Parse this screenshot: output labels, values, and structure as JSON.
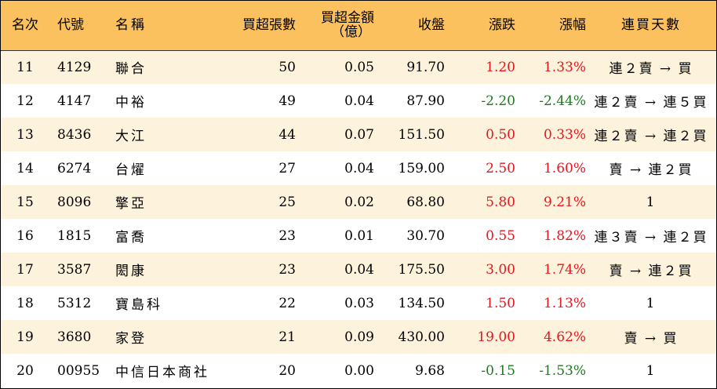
{
  "colors": {
    "header_bg": "#fbc15e",
    "stripe_bg": "#fdf2dc",
    "up": "#e8141e",
    "down": "#1e7a1e"
  },
  "headers": {
    "rank": "名次",
    "code": "代號",
    "name": "名稱",
    "net_volume": "買超張數",
    "net_amount_line1": "買超金額",
    "net_amount_line2": "（億）",
    "close": "收盤",
    "change": "漲跌",
    "change_pct": "漲幅",
    "streak": "連買天數"
  },
  "rows": [
    {
      "rank": "11",
      "code": "4129",
      "name": "聯合",
      "volume": "50",
      "amount": "0.05",
      "close": "91.70",
      "change": "1.20",
      "pct": "1.33%",
      "dir": "up",
      "streak": "連２賣 → 買"
    },
    {
      "rank": "12",
      "code": "4147",
      "name": "中裕",
      "volume": "49",
      "amount": "0.04",
      "close": "87.90",
      "change": "-2.20",
      "pct": "-2.44%",
      "dir": "down",
      "streak": "連２賣 → 連５買"
    },
    {
      "rank": "13",
      "code": "8436",
      "name": "大江",
      "volume": "44",
      "amount": "0.07",
      "close": "151.50",
      "change": "0.50",
      "pct": "0.33%",
      "dir": "up",
      "streak": "連２賣 → 連２買"
    },
    {
      "rank": "14",
      "code": "6274",
      "name": "台燿",
      "volume": "27",
      "amount": "0.04",
      "close": "159.00",
      "change": "2.50",
      "pct": "1.60%",
      "dir": "up",
      "streak": "賣 → 連２買"
    },
    {
      "rank": "15",
      "code": "8096",
      "name": "擎亞",
      "volume": "25",
      "amount": "0.02",
      "close": "68.80",
      "change": "5.80",
      "pct": "9.21%",
      "dir": "up",
      "streak": "1"
    },
    {
      "rank": "16",
      "code": "1815",
      "name": "富喬",
      "volume": "23",
      "amount": "0.01",
      "close": "30.70",
      "change": "0.55",
      "pct": "1.82%",
      "dir": "up",
      "streak": "連３賣 → 連２買"
    },
    {
      "rank": "17",
      "code": "3587",
      "name": "閎康",
      "volume": "23",
      "amount": "0.04",
      "close": "175.50",
      "change": "3.00",
      "pct": "1.74%",
      "dir": "up",
      "streak": "賣 → 連２買"
    },
    {
      "rank": "18",
      "code": "5312",
      "name": "寶島科",
      "volume": "22",
      "amount": "0.03",
      "close": "134.50",
      "change": "1.50",
      "pct": "1.13%",
      "dir": "up",
      "streak": "1"
    },
    {
      "rank": "19",
      "code": "3680",
      "name": "家登",
      "volume": "21",
      "amount": "0.09",
      "close": "430.00",
      "change": "19.00",
      "pct": "4.62%",
      "dir": "up",
      "streak": "賣 → 買"
    },
    {
      "rank": "20",
      "code": "00955",
      "name": "中信日本商社",
      "volume": "20",
      "amount": "0.00",
      "close": "9.68",
      "change": "-0.15",
      "pct": "-1.53%",
      "dir": "down",
      "streak": "1"
    }
  ]
}
